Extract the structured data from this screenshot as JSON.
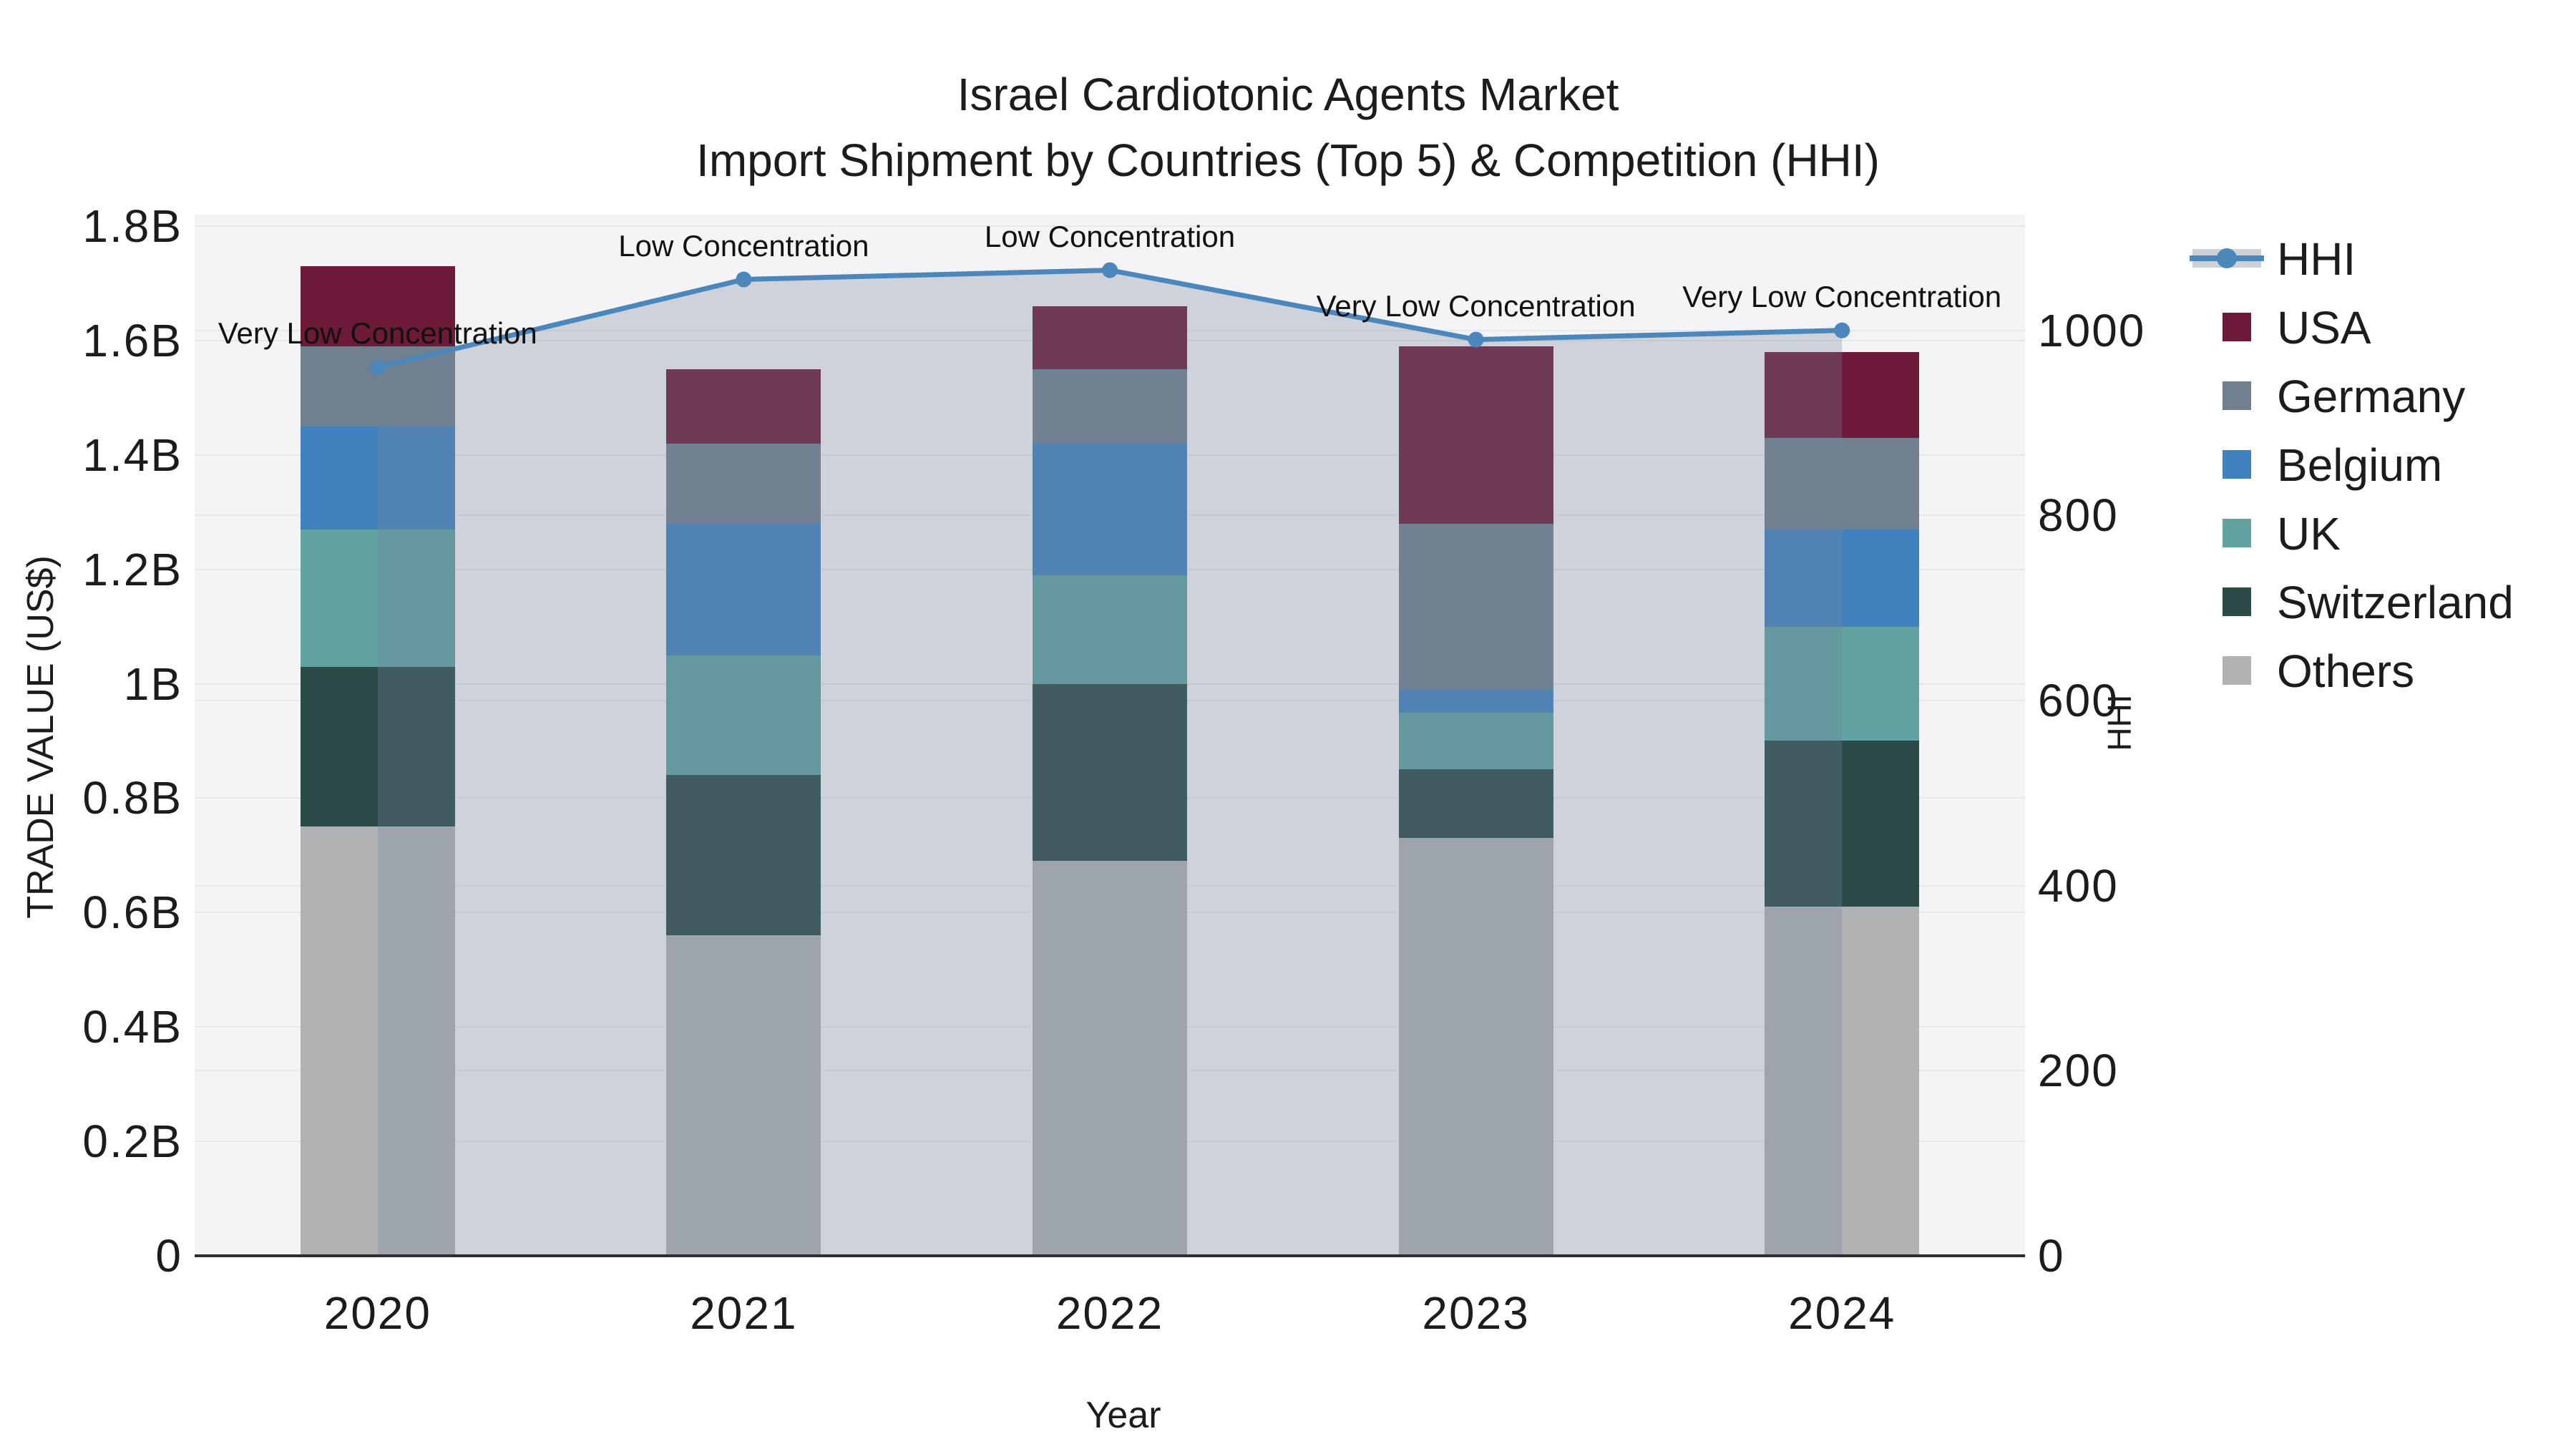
{
  "title": {
    "line1": "Israel Cardiotonic Agents Market",
    "line2": "Import Shipment by Countries (Top 5) & Competition (HHI)"
  },
  "axes": {
    "x_title": "Year",
    "y_left_title": "TRADE VALUE (US$)",
    "y_right_title": "HHI",
    "y_left_ticks": [
      {
        "label": "0",
        "value": 0
      },
      {
        "label": "0.2B",
        "value": 0.2
      },
      {
        "label": "0.4B",
        "value": 0.4
      },
      {
        "label": "0.6B",
        "value": 0.6
      },
      {
        "label": "0.8B",
        "value": 0.8
      },
      {
        "label": "1B",
        "value": 1.0
      },
      {
        "label": "1.2B",
        "value": 1.2
      },
      {
        "label": "1.4B",
        "value": 1.4
      },
      {
        "label": "1.6B",
        "value": 1.6
      },
      {
        "label": "1.8B",
        "value": 1.8
      }
    ],
    "y_right_ticks": [
      {
        "label": "0",
        "value": 0
      },
      {
        "label": "200",
        "value": 200
      },
      {
        "label": "400",
        "value": 400
      },
      {
        "label": "600",
        "value": 600
      },
      {
        "label": "800",
        "value": 800
      },
      {
        "label": "1000",
        "value": 1000
      }
    ]
  },
  "legend": {
    "items": [
      {
        "label": "HHI",
        "type": "line",
        "color": "#4c87bb",
        "band_color": "#ccd1d8"
      },
      {
        "label": "USA",
        "type": "patch",
        "color": "#6d1a3a"
      },
      {
        "label": "Germany",
        "type": "patch",
        "color": "#71808f"
      },
      {
        "label": "Belgium",
        "type": "patch",
        "color": "#4181bd"
      },
      {
        "label": "UK",
        "type": "patch",
        "color": "#61a3a1"
      },
      {
        "label": "Switzerland",
        "type": "patch",
        "color": "#2b4b48"
      },
      {
        "label": "Others",
        "type": "patch",
        "color": "#b0b2b4"
      }
    ]
  },
  "annotations": [
    {
      "year": "2020",
      "text": "Very Low Concentration"
    },
    {
      "year": "2021",
      "text": "Low Concentration"
    },
    {
      "year": "2022",
      "text": "Low Concentration"
    },
    {
      "year": "2023",
      "text": "Very Low Concentration"
    },
    {
      "year": "2024",
      "text": "Very Low Concentration"
    }
  ],
  "chart_data": {
    "type": "bar+line",
    "unit": "billion US$",
    "categories": [
      "2020",
      "2021",
      "2022",
      "2023",
      "2024"
    ],
    "stack_order_bottom_to_top": [
      "Others",
      "Switzerland",
      "UK",
      "Belgium",
      "Germany",
      "USA"
    ],
    "series": [
      {
        "name": "Others",
        "color": "#b0b2b4",
        "values": [
          0.75,
          0.56,
          0.69,
          0.73,
          0.61
        ]
      },
      {
        "name": "Switzerland",
        "color": "#2b4b48",
        "values": [
          0.28,
          0.28,
          0.31,
          0.12,
          0.29
        ]
      },
      {
        "name": "UK",
        "color": "#61a3a1",
        "values": [
          0.24,
          0.21,
          0.19,
          0.1,
          0.2
        ]
      },
      {
        "name": "Belgium",
        "color": "#4181bd",
        "values": [
          0.18,
          0.23,
          0.23,
          0.04,
          0.17
        ]
      },
      {
        "name": "Germany",
        "color": "#71808f",
        "values": [
          0.14,
          0.14,
          0.13,
          0.29,
          0.16
        ]
      },
      {
        "name": "USA",
        "color": "#6d1a3a",
        "values": [
          0.14,
          0.13,
          0.11,
          0.31,
          0.15
        ]
      }
    ],
    "bar_totals": [
      1.73,
      1.55,
      1.66,
      1.59,
      1.58
    ],
    "line_series": {
      "name": "HHI",
      "axis": "right",
      "color": "#4c87bb",
      "area_fill": "rgba(115,132,156,0.30)",
      "values": [
        960,
        1055,
        1065,
        990,
        1000
      ]
    },
    "ylim_left": [
      0,
      1.82
    ],
    "ylim_right": [
      0,
      1125
    ],
    "grid": true,
    "legend_position": "right",
    "plot_background": "#f4f4f6"
  }
}
